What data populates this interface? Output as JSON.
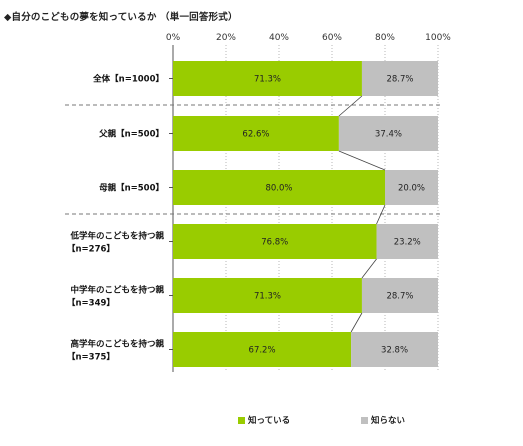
{
  "chart_data": {
    "type": "bar",
    "stacked": true,
    "orientation": "horizontal",
    "title": "◆自分のこどもの夢を知っているか （単一回答形式）",
    "xlim": [
      0,
      100
    ],
    "ticks": [
      "0%",
      "20%",
      "40%",
      "60%",
      "80%",
      "100%"
    ],
    "categories": [
      [
        "全体【n=1000】"
      ],
      [
        "父親【n=500】"
      ],
      [
        "母親【n=500】"
      ],
      [
        "低学年のこどもを持つ親",
        "【n=276】"
      ],
      [
        "中学年のこどもを持つ親",
        "【n=349】"
      ],
      [
        "高学年のこどもを持つ親",
        "【n=375】"
      ]
    ],
    "series": [
      {
        "name": "知っている",
        "color": "#99cc00",
        "values": [
          71.3,
          62.6,
          80.0,
          76.8,
          71.3,
          67.2
        ],
        "labels": [
          "71.3%",
          "62.6%",
          "80.0%",
          "76.8%",
          "71.3%",
          "67.2%"
        ]
      },
      {
        "name": "知らない",
        "color": "#c0c0c0",
        "values": [
          28.7,
          37.4,
          20.0,
          23.2,
          28.7,
          32.8
        ],
        "labels": [
          "28.7%",
          "37.4%",
          "20.0%",
          "23.2%",
          "28.7%",
          "32.8%"
        ]
      }
    ],
    "group_separators_after": [
      0,
      2
    ],
    "connector_lines": true,
    "legend_position": "bottom"
  }
}
